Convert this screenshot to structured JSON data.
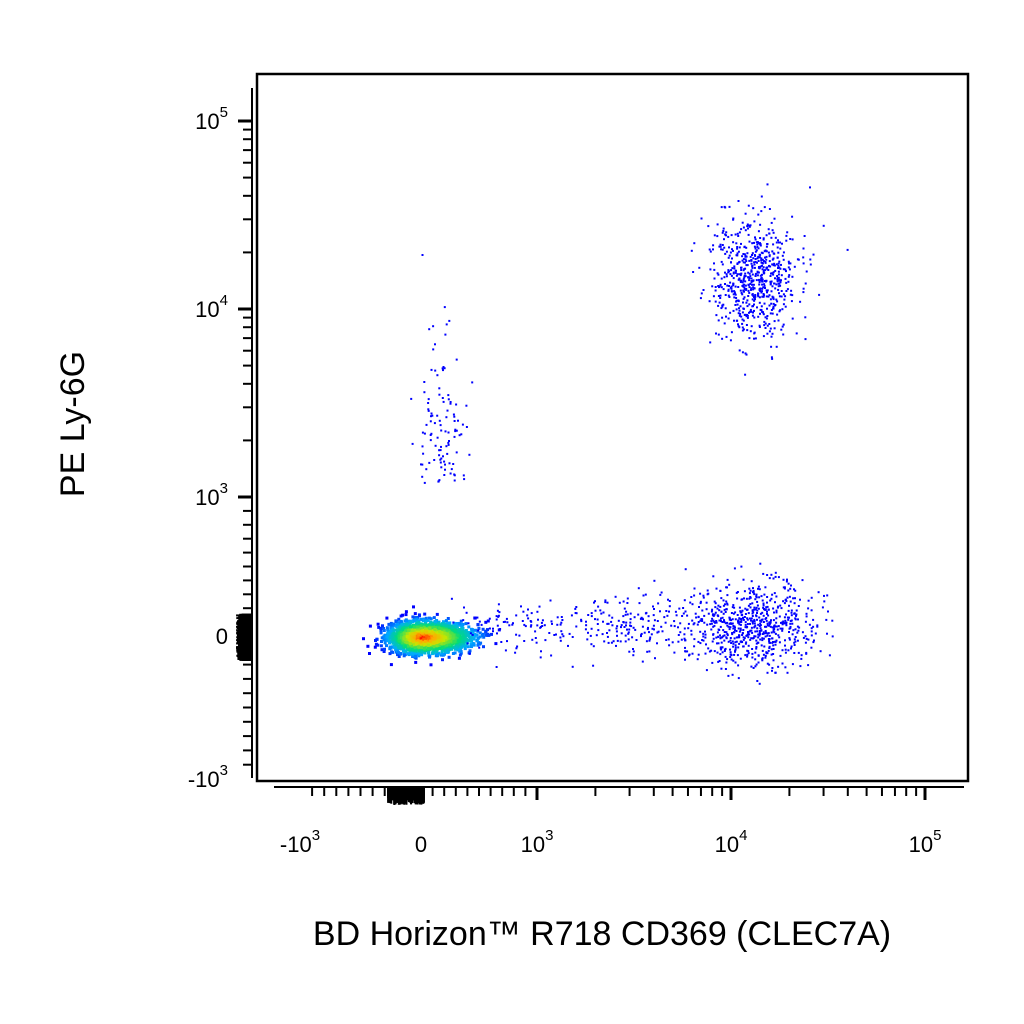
{
  "chart_data": {
    "type": "scatter",
    "title": "",
    "xlabel": "BD Horizon™ R718 CD369 (CLEC7A)",
    "ylabel": "PE Ly-6G",
    "x_scale": "biexponential",
    "y_scale": "biexponential",
    "xlim": [
      -1500,
      180000
    ],
    "ylim": [
      -1200,
      200000
    ],
    "x_ticks": [
      {
        "value": -1000,
        "base": "-10",
        "exp": "3"
      },
      {
        "value": 0,
        "base": "0",
        "exp": ""
      },
      {
        "value": 1000,
        "base": "10",
        "exp": "3"
      },
      {
        "value": 10000,
        "base": "10",
        "exp": "4"
      },
      {
        "value": 100000,
        "base": "10",
        "exp": "5"
      }
    ],
    "y_ticks": [
      {
        "value": -1000,
        "base": "-10",
        "exp": "3"
      },
      {
        "value": 0,
        "base": "0",
        "exp": ""
      },
      {
        "value": 1000,
        "base": "10",
        "exp": "3"
      },
      {
        "value": 10000,
        "base": "10",
        "exp": "4"
      },
      {
        "value": 100000,
        "base": "10",
        "exp": "5"
      }
    ],
    "color_scale": "density (blue → cyan → green → yellow → red)",
    "grid": false,
    "legend": "none",
    "populations": [
      {
        "id": "double-negative",
        "x_center": 0,
        "y_center": 0,
        "x_spread_decades": 0.35,
        "y_spread_decades": 0.3,
        "relative_density": "very high",
        "peak_color": "#ff0000"
      },
      {
        "id": "Ly-6G-positive CLEC7A-high",
        "x_center": 13000,
        "y_center": 15000,
        "x_spread_decades": 0.25,
        "y_spread_decades": 0.35,
        "relative_density": "medium",
        "peak_color": "#0000ff"
      },
      {
        "id": "Ly-6G-negative CLEC7A-high",
        "x_center": 13000,
        "y_center": 80,
        "x_spread_decades": 0.35,
        "y_spread_decades": 0.25,
        "relative_density": "medium",
        "peak_color": "#0000ff"
      },
      {
        "id": "Ly-6G-positive CLEC7A-low",
        "x_center": 150,
        "y_center": 2500,
        "x_spread_decades": 0.2,
        "y_spread_decades": 0.5,
        "relative_density": "sparse",
        "peak_color": "#0000ff"
      }
    ]
  }
}
